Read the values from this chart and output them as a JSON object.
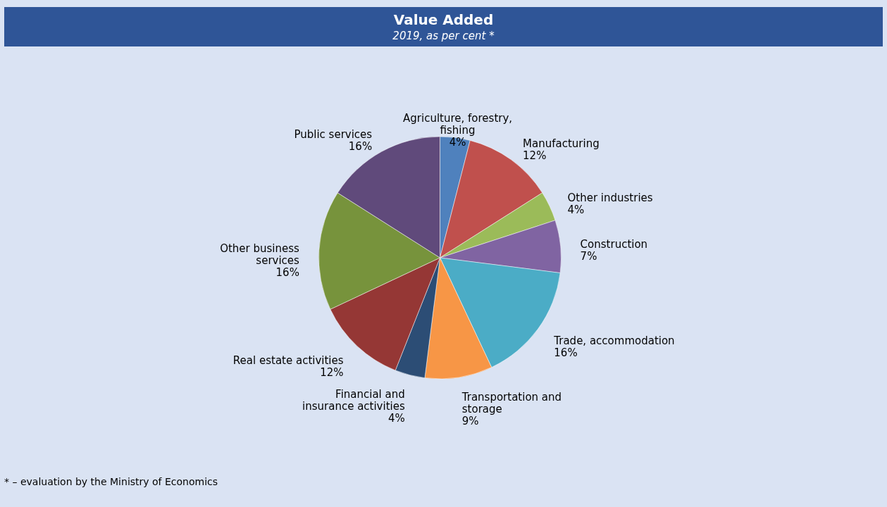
{
  "chart_data": {
    "type": "pie",
    "title": "Value Added",
    "subtitle": "2019, as per cent *",
    "categories": [
      "Agriculture, forestry, fishing",
      "Manufacturing",
      "Other industries",
      "Construction",
      "Trade, accommodation",
      "Transportation and storage",
      "Financial and insurance activities",
      "Real estate activities",
      "Other business services",
      "Public services"
    ],
    "values": [
      4,
      12,
      4,
      7,
      16,
      9,
      4,
      12,
      16,
      16
    ],
    "value_labels": [
      "4%",
      "12%",
      "4%",
      "7%",
      "16%",
      "9%",
      "4%",
      "12%",
      "16%",
      "16%"
    ],
    "colors": [
      "#4f81bd",
      "#c0504d",
      "#9bbb59",
      "#8064a2",
      "#4bacc6",
      "#f79646",
      "#2c4d75",
      "#953735",
      "#77933c",
      "#604a7b"
    ],
    "annotations": [
      "* – evaluation by the Ministry of Economics"
    ]
  }
}
